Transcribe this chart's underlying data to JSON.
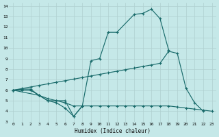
{
  "xlabel": "Humidex (Indice chaleur)",
  "xlim": [
    -0.5,
    23.5
  ],
  "ylim": [
    3,
    14.3
  ],
  "yticks": [
    3,
    4,
    5,
    6,
    7,
    8,
    9,
    10,
    11,
    12,
    13,
    14
  ],
  "xticks": [
    0,
    1,
    2,
    3,
    4,
    5,
    6,
    7,
    8,
    9,
    10,
    11,
    12,
    13,
    14,
    15,
    16,
    17,
    18,
    19,
    20,
    21,
    22,
    23
  ],
  "bg_color": "#c5e8e8",
  "line_color": "#1a6b6b",
  "grid_color": "#b0d0d0",
  "line1_x": [
    0,
    1,
    2,
    3,
    4,
    5,
    6,
    7,
    8,
    9,
    10,
    11,
    12,
    14,
    15,
    16,
    17,
    18
  ],
  "line1_y": [
    6.0,
    6.1,
    6.1,
    5.5,
    5.0,
    5.0,
    5.0,
    3.5,
    4.5,
    8.8,
    9.0,
    11.5,
    11.5,
    13.2,
    13.3,
    13.7,
    12.8,
    9.8
  ],
  "line2_x": [
    0,
    3,
    4,
    5,
    6,
    7,
    8
  ],
  "line2_y": [
    6.0,
    5.5,
    5.0,
    4.8,
    4.3,
    3.5,
    4.5
  ],
  "line3_x": [
    0,
    1,
    2,
    3,
    4,
    5,
    6,
    7,
    8,
    9,
    10,
    11,
    12,
    13,
    14,
    15,
    16,
    17,
    18,
    19,
    20,
    21,
    22
  ],
  "line3_y": [
    6.0,
    6.15,
    6.3,
    6.45,
    6.6,
    6.75,
    6.9,
    7.05,
    7.2,
    7.35,
    7.5,
    7.65,
    7.8,
    7.95,
    8.1,
    8.25,
    8.4,
    8.55,
    9.7,
    9.5,
    6.2,
    4.8,
    4.0
  ],
  "line4_x": [
    0,
    1,
    2,
    3,
    4,
    5,
    6,
    7,
    8,
    9,
    10,
    11,
    12,
    13,
    14,
    15,
    16,
    17,
    18,
    19,
    20,
    21,
    22,
    23
  ],
  "line4_y": [
    6.0,
    6.0,
    6.0,
    5.5,
    5.2,
    5.0,
    4.8,
    4.5,
    4.5,
    4.5,
    4.5,
    4.5,
    4.5,
    4.5,
    4.5,
    4.5,
    4.5,
    4.5,
    4.5,
    4.4,
    4.3,
    4.2,
    4.1,
    4.0
  ]
}
